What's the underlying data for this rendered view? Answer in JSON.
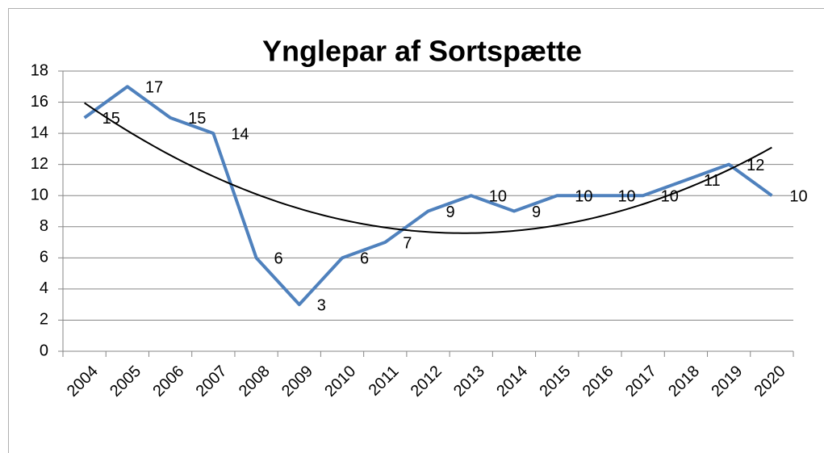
{
  "chart_data": {
    "type": "line",
    "title": "Ynglepar af Sortspætte",
    "categories": [
      "2004",
      "2005",
      "2006",
      "2007",
      "2008",
      "2009",
      "2010",
      "2011",
      "2012",
      "2013",
      "2014",
      "2015",
      "2016",
      "2017",
      "2018",
      "2019",
      "2020"
    ],
    "series": [
      {
        "color": "#4f81bd",
        "values": [
          15,
          17,
          15,
          14,
          6,
          3,
          6,
          7,
          9,
          10,
          9,
          10,
          10,
          10,
          11,
          12,
          10
        ]
      }
    ],
    "ylim": [
      0,
      18
    ],
    "yticks": [
      0,
      2,
      4,
      6,
      8,
      10,
      12,
      14,
      16,
      18
    ],
    "grid": true,
    "data_labels": true,
    "trendline": {
      "type": "polynomial",
      "order": 2,
      "color": "#000000"
    }
  }
}
